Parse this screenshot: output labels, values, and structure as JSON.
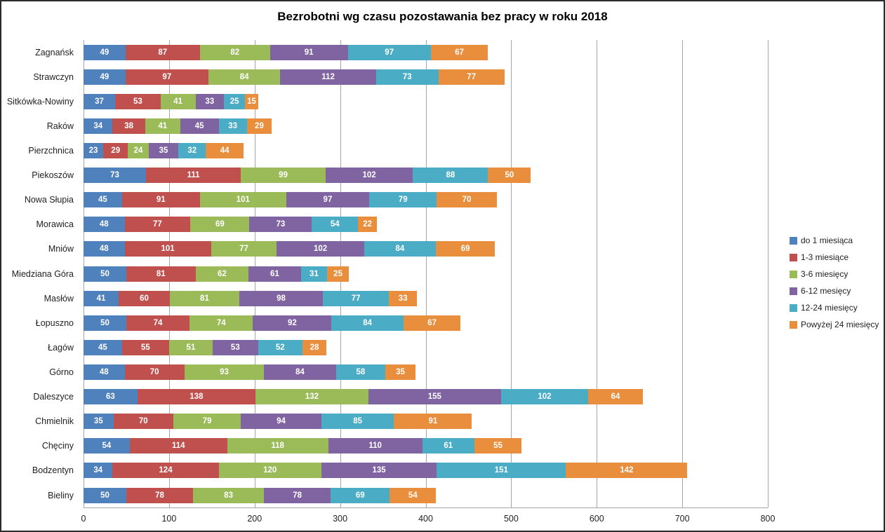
{
  "chart_data": {
    "type": "bar",
    "orientation": "horizontal-stacked",
    "title": "Bezrobotni wg czasu pozostawania bez pracy w roku 2018",
    "categories": [
      "Zagnańsk",
      "Strawczyn",
      "Sitkówka-Nowiny",
      "Raków",
      "Pierzchnica",
      "Piekoszów",
      "Nowa Słupia",
      "Morawica",
      "Mniów",
      "Miedziana Góra",
      "Masłów",
      "Łopuszno",
      "Łagów",
      "Górno",
      "Daleszyce",
      "Chmielnik",
      "Chęciny",
      "Bodzentyn",
      "Bieliny"
    ],
    "series": [
      {
        "name": "do 1 miesiąca",
        "color": "#4F81BD",
        "values": [
          49,
          49,
          37,
          34,
          23,
          73,
          45,
          48,
          48,
          50,
          41,
          50,
          45,
          48,
          63,
          35,
          54,
          34,
          50
        ]
      },
      {
        "name": "1-3 miesiące",
        "color": "#C0504D",
        "values": [
          87,
          97,
          53,
          38,
          29,
          111,
          91,
          77,
          101,
          81,
          60,
          74,
          55,
          70,
          138,
          70,
          114,
          124,
          78
        ]
      },
      {
        "name": "3-6 miesięcy",
        "color": "#9BBB59",
        "values": [
          82,
          84,
          41,
          41,
          24,
          99,
          101,
          69,
          77,
          62,
          81,
          74,
          51,
          93,
          132,
          79,
          118,
          120,
          83
        ]
      },
      {
        "name": "6-12 mesięcy",
        "color": "#8064A2",
        "values": [
          91,
          112,
          33,
          45,
          35,
          102,
          97,
          73,
          102,
          61,
          98,
          92,
          53,
          84,
          155,
          94,
          110,
          135,
          78
        ]
      },
      {
        "name": "12-24 miesięcy",
        "color": "#4BACC6",
        "values": [
          97,
          73,
          25,
          33,
          32,
          88,
          79,
          54,
          84,
          31,
          77,
          84,
          52,
          58,
          102,
          85,
          61,
          151,
          69
        ]
      },
      {
        "name": "Powyżej 24 miesięcy",
        "color": "#E88E3C",
        "values": [
          67,
          77,
          15,
          29,
          44,
          50,
          70,
          22,
          69,
          25,
          33,
          67,
          28,
          35,
          64,
          91,
          55,
          142,
          54
        ]
      }
    ],
    "x_axis": {
      "min": 0,
      "max": 800,
      "tick_interval": 100,
      "ticks": [
        0,
        100,
        200,
        300,
        400,
        500,
        600,
        700,
        800
      ]
    },
    "grid": true,
    "legend_position": "right",
    "value_labels": "inside-segments-white-bold",
    "colors_meta": {
      "gridline": "#a6a6a6",
      "axis_line": "#a6a6a6",
      "background": "#ffffff",
      "border": "#2b2b2b",
      "text": "#1f1f1f"
    }
  }
}
